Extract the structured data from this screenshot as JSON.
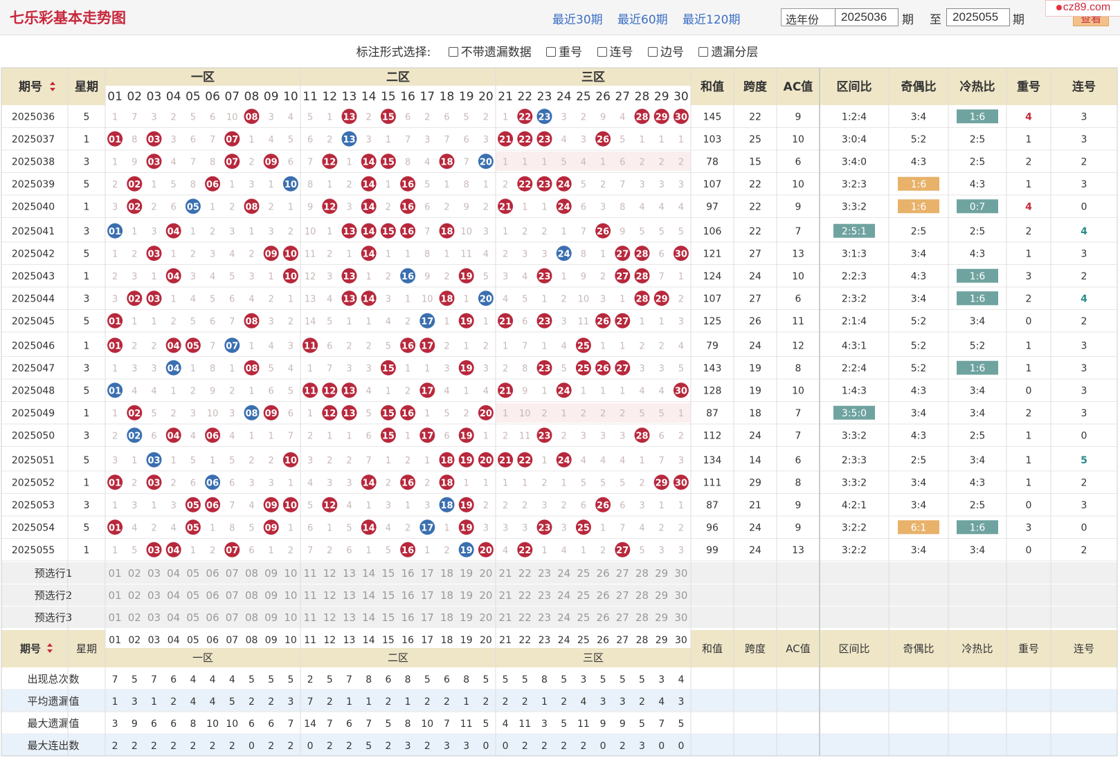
{
  "header": {
    "title": "七乐彩基本走势图",
    "period_links": [
      "最近30期",
      "最近60期",
      "最近120期"
    ],
    "year_select": "选年份",
    "from_period": "2025036",
    "period_suffix": "期",
    "to_label": "至",
    "to_period": "2025055",
    "view_button": "查看",
    "watermark": "cz89.com"
  },
  "markers": {
    "label": "标注形式选择:",
    "options": [
      "不带遗漏数据",
      "重号",
      "连号",
      "边号",
      "遗漏分层"
    ]
  },
  "table": {
    "col_period": "期号",
    "col_weekday": "星期",
    "zones": [
      "一区",
      "二区",
      "三区"
    ],
    "stat_cols": [
      "和值",
      "跨度",
      "AC值",
      "区间比",
      "奇偶比",
      "冷热比",
      "重号",
      "连号"
    ],
    "numbers": [
      "01",
      "02",
      "03",
      "04",
      "05",
      "06",
      "07",
      "08",
      "09",
      "10",
      "11",
      "12",
      "13",
      "14",
      "15",
      "16",
      "17",
      "18",
      "19",
      "20",
      "21",
      "22",
      "23",
      "24",
      "25",
      "26",
      "27",
      "28",
      "29",
      "30"
    ],
    "rows": [
      {
        "period": "2025036",
        "weekday": "5",
        "balls": [
          8,
          13,
          15,
          22,
          28,
          29,
          30
        ],
        "special": 23,
        "miss": [
          1,
          7,
          3,
          2,
          5,
          6,
          10,
          0,
          3,
          4,
          5,
          1,
          0,
          2,
          0,
          6,
          2,
          6,
          5,
          2,
          1,
          0,
          0,
          3,
          2,
          9,
          4,
          0,
          0,
          0
        ],
        "sum": "145",
        "span": "22",
        "ac": "9",
        "zone_ratio": "1:2:4",
        "odd_even": "3:4",
        "cold_hot": "1:6",
        "repeat": "4",
        "consec": "3"
      },
      {
        "period": "2025037",
        "weekday": "1",
        "balls": [
          1,
          3,
          7,
          21,
          22,
          23,
          26
        ],
        "special": 13,
        "miss": [
          0,
          8,
          0,
          3,
          6,
          7,
          0,
          1,
          4,
          5,
          6,
          2,
          0,
          3,
          1,
          7,
          3,
          7,
          6,
          3,
          0,
          0,
          0,
          4,
          3,
          0,
          5,
          1,
          1,
          1
        ],
        "sum": "103",
        "span": "25",
        "ac": "10",
        "zone_ratio": "3:0:4",
        "odd_even": "5:2",
        "cold_hot": "2:5",
        "repeat": "1",
        "consec": "3"
      },
      {
        "period": "2025038",
        "weekday": "3",
        "balls": [
          3,
          7,
          9,
          12,
          14,
          15,
          18
        ],
        "special": 20,
        "miss": [
          1,
          9,
          0,
          4,
          7,
          8,
          0,
          2,
          0,
          6,
          7,
          0,
          1,
          0,
          0,
          8,
          4,
          0,
          7,
          0,
          1,
          1,
          1,
          5,
          4,
          1,
          6,
          2,
          2,
          2
        ],
        "sum": "78",
        "span": "15",
        "ac": "6",
        "zone_ratio": "3:4:0",
        "odd_even": "4:3",
        "cold_hot": "2:5",
        "repeat": "2",
        "consec": "2"
      },
      {
        "period": "2025039",
        "weekday": "5",
        "balls": [
          2,
          6,
          14,
          16,
          22,
          23,
          24
        ],
        "special": 10,
        "miss": [
          2,
          0,
          1,
          5,
          8,
          0,
          1,
          3,
          1,
          0,
          8,
          1,
          2,
          0,
          1,
          0,
          5,
          1,
          8,
          1,
          2,
          0,
          0,
          0,
          5,
          2,
          7,
          3,
          3,
          3
        ],
        "sum": "107",
        "span": "22",
        "ac": "10",
        "zone_ratio": "3:2:3",
        "odd_even": "1:6",
        "cold_hot": "4:3",
        "repeat": "1",
        "consec": "3"
      },
      {
        "period": "2025040",
        "weekday": "1",
        "balls": [
          2,
          8,
          12,
          14,
          16,
          21,
          24
        ],
        "special": 5,
        "miss": [
          3,
          0,
          2,
          6,
          0,
          1,
          2,
          0,
          2,
          1,
          9,
          0,
          3,
          0,
          2,
          0,
          6,
          2,
          9,
          2,
          0,
          1,
          1,
          0,
          6,
          3,
          8,
          4,
          4,
          4
        ],
        "sum": "97",
        "span": "22",
        "ac": "9",
        "zone_ratio": "3:3:2",
        "odd_even": "1:6",
        "cold_hot": "0:7",
        "repeat": "4",
        "consec": "0"
      },
      {
        "period": "2025041",
        "weekday": "3",
        "balls": [
          4,
          13,
          14,
          15,
          16,
          18,
          26
        ],
        "special": 1,
        "miss": [
          0,
          1,
          3,
          0,
          1,
          2,
          3,
          1,
          3,
          2,
          10,
          1,
          0,
          0,
          0,
          0,
          7,
          0,
          10,
          3,
          1,
          2,
          2,
          1,
          7,
          0,
          9,
          5,
          5,
          5
        ],
        "sum": "106",
        "span": "22",
        "ac": "7",
        "zone_ratio": "2:5:1",
        "odd_even": "2:5",
        "cold_hot": "2:5",
        "repeat": "2",
        "consec": "4"
      },
      {
        "period": "2025042",
        "weekday": "5",
        "balls": [
          3,
          9,
          10,
          14,
          27,
          28,
          30
        ],
        "special": 24,
        "miss": [
          1,
          2,
          0,
          1,
          2,
          3,
          4,
          2,
          0,
          0,
          11,
          2,
          1,
          0,
          1,
          1,
          8,
          1,
          11,
          4,
          2,
          3,
          3,
          0,
          8,
          1,
          0,
          0,
          6,
          0
        ],
        "sum": "121",
        "span": "27",
        "ac": "13",
        "zone_ratio": "3:1:3",
        "odd_even": "3:4",
        "cold_hot": "4:3",
        "repeat": "1",
        "consec": "3"
      },
      {
        "period": "2025043",
        "weekday": "1",
        "balls": [
          4,
          10,
          13,
          19,
          23,
          27,
          28
        ],
        "special": 16,
        "miss": [
          2,
          3,
          1,
          0,
          3,
          4,
          5,
          3,
          1,
          0,
          12,
          3,
          0,
          1,
          2,
          0,
          9,
          2,
          0,
          5,
          3,
          4,
          0,
          1,
          9,
          2,
          0,
          0,
          7,
          1
        ],
        "sum": "124",
        "span": "24",
        "ac": "10",
        "zone_ratio": "2:2:3",
        "odd_even": "4:3",
        "cold_hot": "1:6",
        "repeat": "3",
        "consec": "2"
      },
      {
        "period": "2025044",
        "weekday": "3",
        "balls": [
          2,
          3,
          13,
          14,
          18,
          28,
          29
        ],
        "special": 20,
        "miss": [
          3,
          0,
          0,
          1,
          4,
          5,
          6,
          4,
          2,
          1,
          13,
          4,
          0,
          0,
          3,
          1,
          10,
          0,
          1,
          0,
          4,
          5,
          1,
          2,
          10,
          3,
          1,
          0,
          0,
          2
        ],
        "sum": "107",
        "span": "27",
        "ac": "6",
        "zone_ratio": "2:3:2",
        "odd_even": "3:4",
        "cold_hot": "1:6",
        "repeat": "2",
        "consec": "4"
      },
      {
        "period": "2025045",
        "weekday": "5",
        "balls": [
          1,
          8,
          19,
          21,
          23,
          26,
          27
        ],
        "special": 17,
        "miss": [
          0,
          1,
          1,
          2,
          5,
          6,
          7,
          0,
          3,
          2,
          14,
          5,
          1,
          1,
          4,
          2,
          0,
          1,
          0,
          1,
          0,
          6,
          0,
          3,
          11,
          0,
          0,
          1,
          1,
          3
        ],
        "sum": "125",
        "span": "26",
        "ac": "11",
        "zone_ratio": "2:1:4",
        "odd_even": "5:2",
        "cold_hot": "3:4",
        "repeat": "0",
        "consec": "2"
      },
      {
        "period": "2025046",
        "weekday": "1",
        "balls": [
          1,
          4,
          5,
          11,
          16,
          17,
          25
        ],
        "special": 7,
        "miss": [
          0,
          2,
          2,
          0,
          0,
          7,
          0,
          1,
          4,
          3,
          0,
          6,
          2,
          2,
          5,
          0,
          0,
          2,
          1,
          2,
          1,
          7,
          1,
          4,
          0,
          1,
          1,
          2,
          2,
          4
        ],
        "sum": "79",
        "span": "24",
        "ac": "12",
        "zone_ratio": "4:3:1",
        "odd_even": "5:2",
        "cold_hot": "5:2",
        "repeat": "1",
        "consec": "3"
      },
      {
        "period": "2025047",
        "weekday": "3",
        "balls": [
          8,
          15,
          19,
          23,
          25,
          26,
          27
        ],
        "special": 4,
        "miss": [
          1,
          3,
          3,
          0,
          1,
          8,
          1,
          0,
          5,
          4,
          1,
          7,
          3,
          3,
          0,
          1,
          1,
          3,
          0,
          3,
          2,
          8,
          0,
          5,
          0,
          0,
          0,
          3,
          3,
          5
        ],
        "sum": "143",
        "span": "19",
        "ac": "8",
        "zone_ratio": "2:2:4",
        "odd_even": "5:2",
        "cold_hot": "1:6",
        "repeat": "1",
        "consec": "3"
      },
      {
        "period": "2025048",
        "weekday": "5",
        "balls": [
          11,
          12,
          13,
          17,
          21,
          24,
          30
        ],
        "special": 1,
        "miss": [
          0,
          4,
          4,
          1,
          2,
          9,
          2,
          1,
          6,
          5,
          0,
          0,
          0,
          4,
          1,
          2,
          0,
          4,
          1,
          4,
          0,
          9,
          1,
          0,
          1,
          1,
          1,
          4,
          4,
          0
        ],
        "sum": "128",
        "span": "19",
        "ac": "10",
        "zone_ratio": "1:4:3",
        "odd_even": "4:3",
        "cold_hot": "3:4",
        "repeat": "0",
        "consec": "3"
      },
      {
        "period": "2025049",
        "weekday": "1",
        "balls": [
          2,
          9,
          12,
          13,
          15,
          16,
          20
        ],
        "special": 8,
        "miss": [
          1,
          0,
          5,
          2,
          3,
          10,
          3,
          0,
          0,
          6,
          1,
          0,
          0,
          5,
          0,
          0,
          1,
          5,
          2,
          0,
          1,
          10,
          2,
          1,
          2,
          2,
          2,
          5,
          5,
          1
        ],
        "sum": "87",
        "span": "18",
        "ac": "7",
        "zone_ratio": "3:5:0",
        "odd_even": "3:4",
        "cold_hot": "3:4",
        "repeat": "2",
        "consec": "3"
      },
      {
        "period": "2025050",
        "weekday": "3",
        "balls": [
          4,
          6,
          15,
          17,
          19,
          23,
          28
        ],
        "special": 2,
        "miss": [
          2,
          0,
          6,
          0,
          4,
          0,
          4,
          1,
          1,
          7,
          2,
          1,
          1,
          6,
          0,
          1,
          0,
          6,
          0,
          1,
          2,
          11,
          0,
          2,
          3,
          3,
          3,
          0,
          6,
          2
        ],
        "sum": "112",
        "span": "24",
        "ac": "7",
        "zone_ratio": "3:3:2",
        "odd_even": "4:3",
        "cold_hot": "2:5",
        "repeat": "1",
        "consec": "0"
      },
      {
        "period": "2025051",
        "weekday": "5",
        "balls": [
          10,
          18,
          19,
          20,
          21,
          22,
          24
        ],
        "special": 3,
        "miss": [
          3,
          1,
          0,
          1,
          5,
          1,
          5,
          2,
          2,
          0,
          3,
          2,
          2,
          7,
          1,
          2,
          1,
          0,
          0,
          0,
          0,
          0,
          1,
          0,
          4,
          4,
          4,
          1,
          7,
          3
        ],
        "sum": "134",
        "span": "14",
        "ac": "6",
        "zone_ratio": "2:3:3",
        "odd_even": "2:5",
        "cold_hot": "3:4",
        "repeat": "1",
        "consec": "5"
      },
      {
        "period": "2025052",
        "weekday": "1",
        "balls": [
          1,
          3,
          14,
          16,
          18,
          29,
          30
        ],
        "special": 6,
        "miss": [
          0,
          2,
          0,
          2,
          6,
          0,
          6,
          3,
          3,
          1,
          4,
          3,
          3,
          0,
          2,
          0,
          2,
          0,
          1,
          1,
          1,
          1,
          2,
          1,
          5,
          5,
          5,
          2,
          0,
          0
        ],
        "sum": "111",
        "span": "29",
        "ac": "8",
        "zone_ratio": "3:3:2",
        "odd_even": "3:4",
        "cold_hot": "4:3",
        "repeat": "1",
        "consec": "2"
      },
      {
        "period": "2025053",
        "weekday": "3",
        "balls": [
          5,
          6,
          9,
          10,
          12,
          26,
          19
        ],
        "special": 18,
        "miss": [
          1,
          3,
          1,
          3,
          0,
          0,
          7,
          4,
          0,
          0,
          5,
          0,
          4,
          1,
          3,
          1,
          3,
          0,
          0,
          2,
          2,
          2,
          3,
          2,
          6,
          0,
          6,
          3,
          1,
          1
        ],
        "sum": "87",
        "span": "21",
        "ac": "9",
        "zone_ratio": "4:2:1",
        "odd_even": "3:4",
        "cold_hot": "2:5",
        "repeat": "0",
        "consec": "3"
      },
      {
        "period": "2025054",
        "weekday": "5",
        "balls": [
          1,
          5,
          9,
          14,
          23,
          25,
          19
        ],
        "special": 17,
        "miss": [
          0,
          4,
          2,
          4,
          0,
          1,
          8,
          5,
          0,
          1,
          6,
          1,
          5,
          0,
          4,
          2,
          0,
          1,
          0,
          3,
          3,
          3,
          0,
          3,
          0,
          1,
          7,
          4,
          2,
          2
        ],
        "sum": "96",
        "span": "24",
        "ac": "9",
        "zone_ratio": "3:2:2",
        "odd_even": "6:1",
        "cold_hot": "1:6",
        "repeat": "3",
        "consec": "0"
      },
      {
        "period": "2025055",
        "weekday": "1",
        "balls": [
          3,
          4,
          7,
          16,
          20,
          22,
          27
        ],
        "special": 19,
        "miss": [
          1,
          5,
          0,
          0,
          1,
          2,
          0,
          6,
          1,
          2,
          7,
          2,
          6,
          1,
          5,
          0,
          1,
          2,
          0,
          0,
          4,
          0,
          1,
          4,
          1,
          2,
          0,
          5,
          3,
          3
        ],
        "sum": "99",
        "span": "24",
        "ac": "13",
        "zone_ratio": "3:2:2",
        "odd_even": "3:4",
        "cold_hot": "3:4",
        "repeat": "0",
        "consec": "2"
      }
    ],
    "preselect_rows": [
      "预选行1",
      "预选行2",
      "预选行3"
    ],
    "stats": [
      {
        "label": "出现总次数",
        "values": [
          7,
          5,
          7,
          6,
          4,
          4,
          4,
          5,
          5,
          5,
          2,
          5,
          7,
          8,
          6,
          8,
          5,
          6,
          8,
          5,
          5,
          5,
          8,
          5,
          3,
          5,
          5,
          5,
          3,
          4
        ]
      },
      {
        "label": "平均遗漏值",
        "values": [
          1,
          3,
          1,
          2,
          4,
          4,
          5,
          2,
          2,
          3,
          7,
          2,
          1,
          1,
          2,
          1,
          2,
          2,
          1,
          2,
          2,
          2,
          1,
          2,
          4,
          3,
          3,
          2,
          4,
          3
        ]
      },
      {
        "label": "最大遗漏值",
        "values": [
          3,
          9,
          6,
          6,
          8,
          10,
          10,
          6,
          6,
          7,
          14,
          7,
          6,
          7,
          5,
          8,
          10,
          7,
          11,
          5,
          4,
          11,
          3,
          5,
          11,
          9,
          9,
          5,
          7,
          5
        ]
      },
      {
        "label": "最大连出数",
        "values": [
          2,
          2,
          2,
          2,
          2,
          2,
          2,
          0,
          2,
          2,
          0,
          2,
          2,
          5,
          2,
          3,
          2,
          3,
          3,
          0,
          0,
          2,
          2,
          2,
          2,
          0,
          2,
          3,
          0,
          0
        ]
      }
    ]
  },
  "colors": {
    "title_red": "#c8283c",
    "ball_red": "#b8283c",
    "ball_blue": "#3a6fb0",
    "teal_badge": "#6fa3a0",
    "orange_badge": "#e8b26a",
    "header_bg": "#efe6c8"
  }
}
